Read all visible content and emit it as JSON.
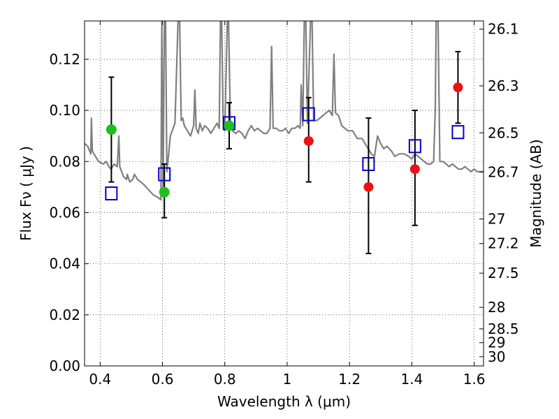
{
  "chart_data": {
    "type": "scatter",
    "xlabel": "Wavelength  λ (μm)",
    "ylabel": "Flux  Fν  ( μJy )",
    "y2label": "Magnitude (AB)",
    "xlim": [
      0.35,
      1.63
    ],
    "ylim": [
      0.0,
      0.135
    ],
    "x_ticks": [
      0.4,
      0.6,
      0.8,
      1.0,
      1.2,
      1.4,
      1.6
    ],
    "x_tick_labels": [
      "0.4",
      "0.6",
      "0.8",
      "1",
      "1.2",
      "1.4",
      "1.6"
    ],
    "y_ticks": [
      0.0,
      0.02,
      0.04,
      0.06,
      0.08,
      0.1,
      0.12
    ],
    "y_tick_labels": [
      "0.00",
      "0.02",
      "0.04",
      "0.06",
      "0.08",
      "0.10",
      "0.12"
    ],
    "y2_ticks": [
      {
        "label": "26.1",
        "flux": 0.1318
      },
      {
        "label": "26.3",
        "flux": 0.1096
      },
      {
        "label": "26.5",
        "flux": 0.0912
      },
      {
        "label": "26.7",
        "flux": 0.0759
      },
      {
        "label": "27",
        "flux": 0.0575
      },
      {
        "label": "27.2",
        "flux": 0.0479
      },
      {
        "label": "27.5",
        "flux": 0.0363
      },
      {
        "label": "28",
        "flux": 0.0229
      },
      {
        "label": "28.5",
        "flux": 0.0145
      },
      {
        "label": "29",
        "flux": 0.0091
      },
      {
        "label": "30",
        "flux": 0.0036
      }
    ],
    "grid": true,
    "colors": {
      "model": "#808080",
      "green": "#1fbf1f",
      "red": "#ee1111",
      "square": "#0000cc",
      "errorbar": "#000000"
    },
    "series": [
      {
        "name": "model spectrum",
        "kind": "line",
        "points": [
          [
            0.35,
            0.087
          ],
          [
            0.36,
            0.086
          ],
          [
            0.37,
            0.083
          ],
          [
            0.372,
            0.097
          ],
          [
            0.375,
            0.084
          ],
          [
            0.385,
            0.082
          ],
          [
            0.395,
            0.08
          ],
          [
            0.41,
            0.079
          ],
          [
            0.42,
            0.08
          ],
          [
            0.428,
            0.078
          ],
          [
            0.435,
            0.077
          ],
          [
            0.445,
            0.079
          ],
          [
            0.455,
            0.078
          ],
          [
            0.46,
            0.09
          ],
          [
            0.463,
            0.078
          ],
          [
            0.475,
            0.074
          ],
          [
            0.485,
            0.073
          ],
          [
            0.487,
            0.075
          ],
          [
            0.495,
            0.072
          ],
          [
            0.505,
            0.073
          ],
          [
            0.51,
            0.075
          ],
          [
            0.52,
            0.073
          ],
          [
            0.54,
            0.071
          ],
          [
            0.555,
            0.069
          ],
          [
            0.57,
            0.067
          ],
          [
            0.585,
            0.066
          ],
          [
            0.595,
            0.065
          ],
          [
            0.598,
            0.135
          ],
          [
            0.602,
            0.068
          ],
          [
            0.606,
            0.135
          ],
          [
            0.61,
            0.135
          ],
          [
            0.614,
            0.076
          ],
          [
            0.62,
            0.083
          ],
          [
            0.625,
            0.09
          ],
          [
            0.64,
            0.095
          ],
          [
            0.65,
            0.135
          ],
          [
            0.655,
            0.135
          ],
          [
            0.66,
            0.096
          ],
          [
            0.665,
            0.097
          ],
          [
            0.67,
            0.094
          ],
          [
            0.68,
            0.092
          ],
          [
            0.69,
            0.09
          ],
          [
            0.7,
            0.094
          ],
          [
            0.704,
            0.108
          ],
          [
            0.708,
            0.093
          ],
          [
            0.715,
            0.091
          ],
          [
            0.72,
            0.095
          ],
          [
            0.728,
            0.092
          ],
          [
            0.735,
            0.094
          ],
          [
            0.745,
            0.093
          ],
          [
            0.755,
            0.091
          ],
          [
            0.765,
            0.093
          ],
          [
            0.775,
            0.095
          ],
          [
            0.782,
            0.093
          ],
          [
            0.786,
            0.135
          ],
          [
            0.79,
            0.135
          ],
          [
            0.795,
            0.093
          ],
          [
            0.8,
            0.092
          ],
          [
            0.808,
            0.135
          ],
          [
            0.812,
            0.135
          ],
          [
            0.818,
            0.094
          ],
          [
            0.825,
            0.092
          ],
          [
            0.835,
            0.091
          ],
          [
            0.845,
            0.092
          ],
          [
            0.855,
            0.091
          ],
          [
            0.865,
            0.089
          ],
          [
            0.875,
            0.092
          ],
          [
            0.885,
            0.094
          ],
          [
            0.895,
            0.092
          ],
          [
            0.905,
            0.093
          ],
          [
            0.915,
            0.092
          ],
          [
            0.925,
            0.091
          ],
          [
            0.935,
            0.091
          ],
          [
            0.945,
            0.093
          ],
          [
            0.95,
            0.125
          ],
          [
            0.955,
            0.093
          ],
          [
            0.965,
            0.093
          ],
          [
            0.975,
            0.092
          ],
          [
            0.985,
            0.092
          ],
          [
            0.995,
            0.093
          ],
          [
            1.005,
            0.091
          ],
          [
            1.015,
            0.093
          ],
          [
            1.025,
            0.093
          ],
          [
            1.035,
            0.094
          ],
          [
            1.042,
            0.093
          ],
          [
            1.045,
            0.11
          ],
          [
            1.05,
            0.094
          ],
          [
            1.055,
            0.135
          ],
          [
            1.06,
            0.135
          ],
          [
            1.065,
            0.095
          ],
          [
            1.075,
            0.135
          ],
          [
            1.08,
            0.135
          ],
          [
            1.085,
            0.096
          ],
          [
            1.095,
            0.096
          ],
          [
            1.105,
            0.097
          ],
          [
            1.115,
            0.098
          ],
          [
            1.125,
            0.099
          ],
          [
            1.135,
            0.1
          ],
          [
            1.145,
            0.098
          ],
          [
            1.15,
            0.122
          ],
          [
            1.155,
            0.099
          ],
          [
            1.165,
            0.098
          ],
          [
            1.175,
            0.094
          ],
          [
            1.185,
            0.093
          ],
          [
            1.195,
            0.092
          ],
          [
            1.21,
            0.092
          ],
          [
            1.225,
            0.089
          ],
          [
            1.24,
            0.089
          ],
          [
            1.255,
            0.086
          ],
          [
            1.27,
            0.083
          ],
          [
            1.28,
            0.082
          ],
          [
            1.29,
            0.09
          ],
          [
            1.3,
            0.087
          ],
          [
            1.31,
            0.085
          ],
          [
            1.32,
            0.086
          ],
          [
            1.335,
            0.084
          ],
          [
            1.345,
            0.082
          ],
          [
            1.36,
            0.083
          ],
          [
            1.375,
            0.083
          ],
          [
            1.39,
            0.082
          ],
          [
            1.4,
            0.081
          ],
          [
            1.41,
            0.083
          ],
          [
            1.42,
            0.082
          ],
          [
            1.43,
            0.081
          ],
          [
            1.44,
            0.08
          ],
          [
            1.45,
            0.079
          ],
          [
            1.46,
            0.079
          ],
          [
            1.47,
            0.08
          ],
          [
            1.475,
            0.1
          ],
          [
            1.478,
            0.135
          ],
          [
            1.484,
            0.135
          ],
          [
            1.49,
            0.08
          ],
          [
            1.5,
            0.08
          ],
          [
            1.51,
            0.079
          ],
          [
            1.52,
            0.078
          ],
          [
            1.53,
            0.079
          ],
          [
            1.54,
            0.078
          ],
          [
            1.55,
            0.077
          ],
          [
            1.56,
            0.077
          ],
          [
            1.57,
            0.078
          ],
          [
            1.58,
            0.077
          ],
          [
            1.59,
            0.076
          ],
          [
            1.6,
            0.077
          ],
          [
            1.61,
            0.076
          ],
          [
            1.62,
            0.076
          ],
          [
            1.63,
            0.076
          ]
        ]
      },
      {
        "name": "observed flux (green)",
        "kind": "errorbar",
        "points": [
          {
            "x": 0.436,
            "y": 0.0925,
            "err_low": 0.072,
            "err_high": 0.113
          },
          {
            "x": 0.606,
            "y": 0.068,
            "err_low": 0.058,
            "err_high": 0.079
          },
          {
            "x": 0.814,
            "y": 0.094,
            "err_low": 0.085,
            "err_high": 0.103
          }
        ]
      },
      {
        "name": "observed flux (red)",
        "kind": "errorbar",
        "points": [
          {
            "x": 1.069,
            "y": 0.088,
            "err_low": 0.072,
            "err_high": 0.105
          },
          {
            "x": 1.261,
            "y": 0.07,
            "err_low": 0.044,
            "err_high": 0.097
          },
          {
            "x": 1.41,
            "y": 0.077,
            "err_low": 0.055,
            "err_high": 0.1
          },
          {
            "x": 1.548,
            "y": 0.109,
            "err_low": 0.095,
            "err_high": 0.123
          }
        ]
      },
      {
        "name": "model photometry",
        "kind": "scatter",
        "points": [
          {
            "x": 0.436,
            "y": 0.0675
          },
          {
            "x": 0.606,
            "y": 0.075
          },
          {
            "x": 0.814,
            "y": 0.095
          },
          {
            "x": 1.069,
            "y": 0.0985
          },
          {
            "x": 1.261,
            "y": 0.079
          },
          {
            "x": 1.41,
            "y": 0.086
          },
          {
            "x": 1.548,
            "y": 0.0915
          }
        ]
      }
    ]
  }
}
